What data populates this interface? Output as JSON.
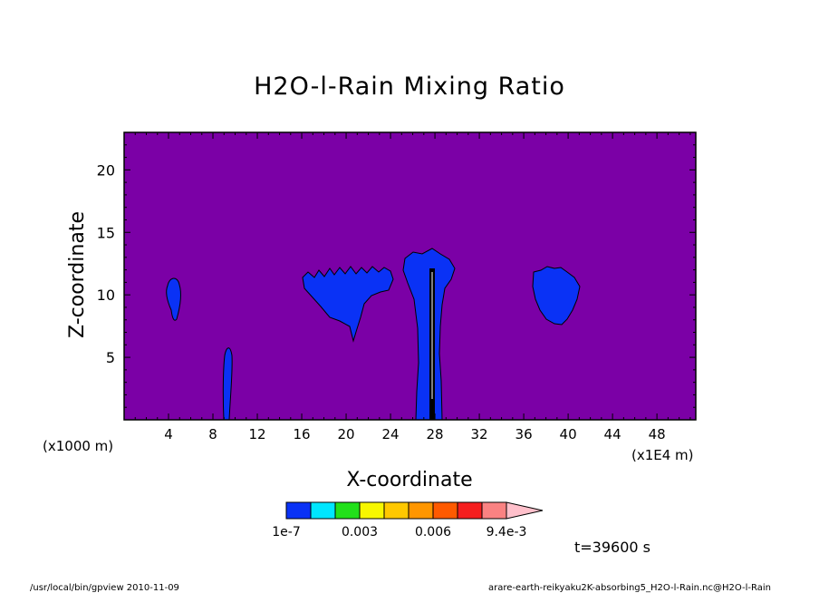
{
  "chart_data": {
    "type": "heatmap",
    "title": "H2O-l-Rain Mixing Ratio",
    "xlabel": "X-coordinate",
    "ylabel": "Z-coordinate",
    "x_scale_note": "(x1E4 m)",
    "y_scale_note": "(x1000 m)",
    "xlim": [
      0,
      51.5
    ],
    "ylim": [
      0,
      23
    ],
    "x_ticks": [
      4,
      8,
      12,
      16,
      20,
      24,
      28,
      32,
      36,
      40,
      44,
      48
    ],
    "y_ticks": [
      5,
      10,
      15,
      20
    ],
    "background_color": "#7b00a6",
    "cells": [
      {
        "x": 4.6,
        "z": 9.6,
        "level": "1e-7"
      },
      {
        "x": 9.5,
        "z": 3.0,
        "level": "1e-7"
      },
      {
        "x": 19.5,
        "z": 10.0,
        "level": "1e-7"
      },
      {
        "x": 27.5,
        "z": 6.0,
        "level": "1e-7"
      },
      {
        "x": 38.5,
        "z": 10.0,
        "level": "1e-7"
      }
    ],
    "colorbar": {
      "colors": [
        "#0a32f5",
        "#00e6ff",
        "#22e01a",
        "#f7f700",
        "#ffc800",
        "#ff9600",
        "#ff5a00",
        "#f51e1e",
        "#fa8282",
        "#ffc0cb"
      ],
      "labels": [
        "1e-7",
        "0.003",
        "0.006",
        "9.4e-3"
      ]
    },
    "time_label": "t=39600 s"
  },
  "footer": {
    "left": "/usr/local/bin/gpview  2010-11-09",
    "right": "arare-earth-reikyaku2K-absorbing5_H2O-l-Rain.nc@H2O-l-Rain"
  }
}
